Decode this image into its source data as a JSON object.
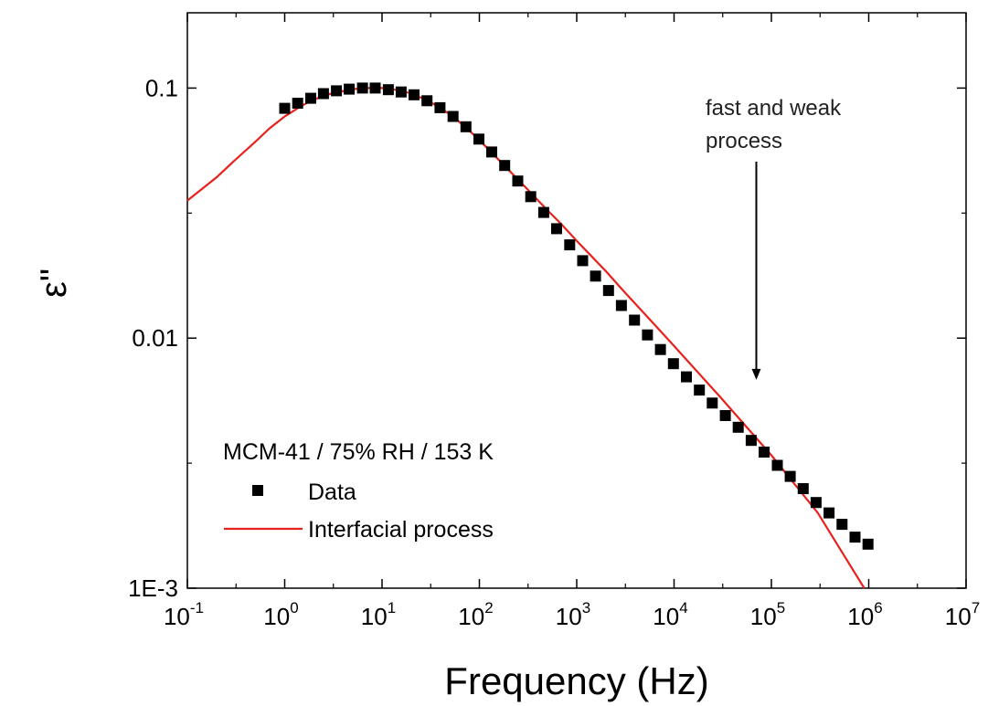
{
  "chart_data": {
    "type": "scatter",
    "xlabel": "Frequency (Hz)",
    "ylabel": "ε\"",
    "x_scale": "log",
    "y_scale": "log",
    "xlim": [
      0.1,
      10000000
    ],
    "ylim": [
      0.001,
      0.2
    ],
    "x_ticks": [
      {
        "base": "10",
        "exp": "-1",
        "value": 0.1
      },
      {
        "base": "10",
        "exp": "0",
        "value": 1
      },
      {
        "base": "10",
        "exp": "1",
        "value": 10
      },
      {
        "base": "10",
        "exp": "2",
        "value": 100
      },
      {
        "base": "10",
        "exp": "3",
        "value": 1000
      },
      {
        "base": "10",
        "exp": "4",
        "value": 10000
      },
      {
        "base": "10",
        "exp": "5",
        "value": 100000
      },
      {
        "base": "10",
        "exp": "6",
        "value": 1000000
      },
      {
        "base": "10",
        "exp": "7",
        "value": 10000000
      }
    ],
    "y_ticks": [
      {
        "label": "1E-3",
        "value": 0.001
      },
      {
        "label": "0.01",
        "value": 0.01
      },
      {
        "label": "0.1",
        "value": 0.1
      }
    ],
    "grid": false,
    "legend": {
      "position": "bottom-left",
      "title": "MCM-41 / 75% RH / 153 K"
    },
    "series": [
      {
        "name": "Data",
        "kind": "scatter",
        "marker": "square",
        "color": "#000000",
        "x": [
          1.0,
          1.36,
          1.85,
          2.5,
          3.4,
          4.6,
          6.3,
          8.5,
          11.6,
          15.7,
          21.3,
          29,
          39.4,
          53.6,
          72.8,
          99,
          134,
          182,
          248,
          337,
          458,
          622,
          846,
          1150,
          1560,
          2120,
          2880,
          3920,
          5330,
          7240,
          9840,
          13400,
          18200,
          24700,
          33600,
          45600,
          62000,
          84300,
          115000,
          156000,
          212000,
          288000,
          391000,
          532000,
          723000,
          982000
        ],
        "y": [
          0.083,
          0.087,
          0.091,
          0.095,
          0.0975,
          0.099,
          0.1,
          0.1,
          0.0985,
          0.0965,
          0.094,
          0.089,
          0.0835,
          0.077,
          0.07,
          0.0625,
          0.0555,
          0.049,
          0.0425,
          0.0368,
          0.0318,
          0.0274,
          0.0236,
          0.0204,
          0.0177,
          0.0155,
          0.0135,
          0.0118,
          0.0103,
          0.009,
          0.0079,
          0.007,
          0.0062,
          0.0055,
          0.0049,
          0.0044,
          0.0039,
          0.0035,
          0.0031,
          0.0028,
          0.0025,
          0.0022,
          0.002,
          0.0018,
          0.0016,
          0.0015
        ]
      },
      {
        "name": "Interfacial process",
        "kind": "line",
        "color": "#e8211c",
        "x": [
          0.1,
          0.2,
          0.3,
          0.5,
          0.7,
          1,
          1.5,
          2,
          3,
          5,
          7,
          10,
          15,
          20,
          30,
          50,
          70,
          100,
          200,
          300,
          500,
          700,
          1000,
          2000,
          3000,
          5000,
          10000,
          30000,
          100000,
          300000,
          900000
        ],
        "y": [
          0.0355,
          0.044,
          0.051,
          0.061,
          0.069,
          0.077,
          0.085,
          0.09,
          0.095,
          0.099,
          0.1,
          0.1,
          0.098,
          0.095,
          0.089,
          0.0785,
          0.0705,
          0.062,
          0.047,
          0.04,
          0.0325,
          0.0285,
          0.0245,
          0.0185,
          0.0155,
          0.0125,
          0.0093,
          0.0058,
          0.0034,
          0.002,
          0.001
        ]
      }
    ],
    "annotations": [
      {
        "line1": "fast and weak",
        "line2": "process",
        "arrow_to_x": 70000,
        "arrow_to_y": 0.0067
      }
    ]
  }
}
